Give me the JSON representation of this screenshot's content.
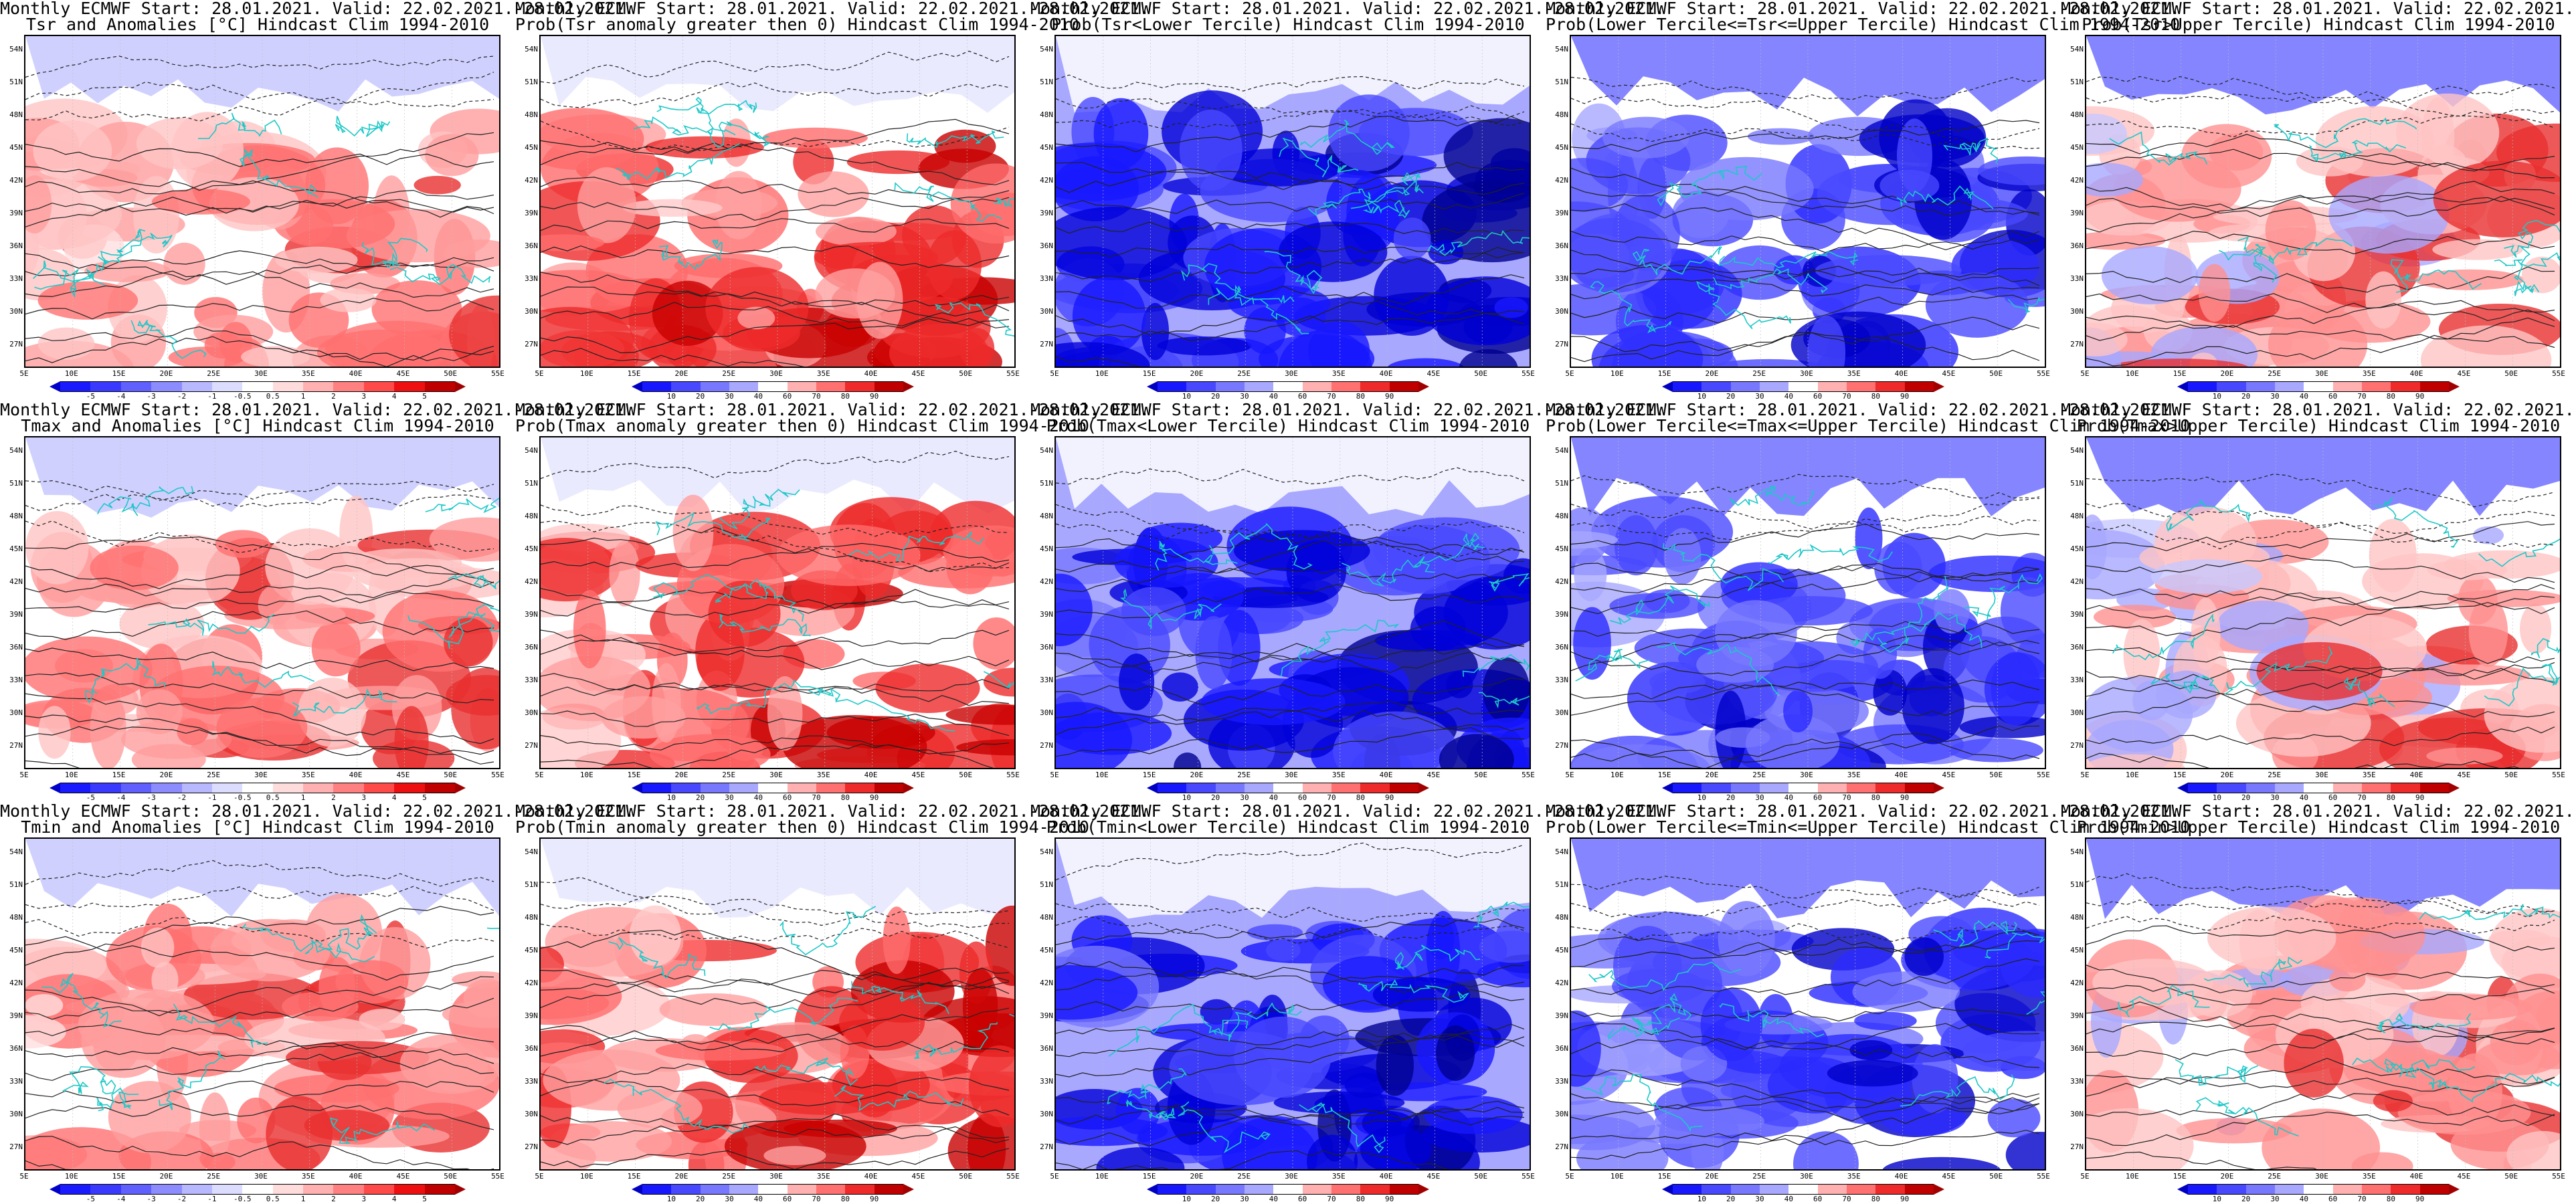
{
  "common": {
    "line1": "Monthly ECMWF Start: 28.01.2021. Valid: 22.02.2021.-28.02.2021.",
    "lat_labels": [
      "54N",
      "51N",
      "48N",
      "45N",
      "42N",
      "39N",
      "36N",
      "33N",
      "30N",
      "27N"
    ],
    "lon_labels": [
      "5E",
      "10E",
      "15E",
      "20E",
      "25E",
      "30E",
      "35E",
      "40E",
      "45E",
      "50E",
      "55E"
    ]
  },
  "colorbars": {
    "anomaly": {
      "labels": [
        "-5",
        "-4",
        "-3",
        "-2",
        "-1",
        "-0.5",
        "0.5",
        "1",
        "2",
        "3",
        "4",
        "5"
      ],
      "colors": [
        "#1a1aff",
        "#3a3aff",
        "#6060ff",
        "#8c8cff",
        "#b8b8ff",
        "#dcdcff",
        "#ffffff",
        "#ffdcdc",
        "#ffb0b0",
        "#ff8080",
        "#ff4a4a",
        "#ee1010",
        "#c00000"
      ],
      "left_end": "#0000c8",
      "right_end": "#a00000"
    },
    "prob": {
      "labels": [
        "10",
        "20",
        "30",
        "40",
        "60",
        "70",
        "80",
        "90"
      ],
      "colors": [
        "#1818ff",
        "#4848ff",
        "#7878ff",
        "#a8a8ff",
        "#ffffff",
        "#ffb0b0",
        "#ff7070",
        "#ee2a2a",
        "#c00000"
      ],
      "left_end": "#0000c0",
      "right_end": "#a00000"
    }
  },
  "panels": [
    {
      "line2": "Tsr and Anomalies [°C] Hindcast Clim 1994-2010",
      "bar": "anomaly",
      "theme": "warm_moderate"
    },
    {
      "line2": "Prob(Tsr anomaly greater then 0) Hindcast Clim 1994-2010",
      "bar": "prob",
      "theme": "warm_strong"
    },
    {
      "line2": "Prob(Tsr<Lower Tercile) Hindcast Clim 1994-2010",
      "bar": "prob",
      "theme": "blue_strong"
    },
    {
      "line2": "Prob(Lower Tercile<=Tsr<=Upper Tercile) Hindcast Clim 1994-2010",
      "bar": "prob",
      "theme": "blue_patchy"
    },
    {
      "line2": "Prob(Tsr>Upper Tercile) Hindcast Clim 1994-2010",
      "bar": "prob",
      "theme": "mixed_light"
    },
    {
      "line2": "Tmax and Anomalies [°C] Hindcast Clim 1994-2010",
      "bar": "anomaly",
      "theme": "warm_moderate"
    },
    {
      "line2": "Prob(Tmax anomaly greater then 0) Hindcast Clim 1994-2010",
      "bar": "prob",
      "theme": "warm_strong"
    },
    {
      "line2": "Prob(Tmax<Lower Tercile) Hindcast Clim 1994-2010",
      "bar": "prob",
      "theme": "blue_strong"
    },
    {
      "line2": "Prob(Lower Tercile<=Tmax<=Upper Tercile) Hindcast Clim 1994-2010",
      "bar": "prob",
      "theme": "blue_patchy"
    },
    {
      "line2": "Prob(Tmax>Upper Tercile) Hindcast Clim 1994-2010",
      "bar": "prob",
      "theme": "mixed_light"
    },
    {
      "line2": "Tmin and Anomalies [°C] Hindcast Clim 1994-2010",
      "bar": "anomaly",
      "theme": "warm_moderate"
    },
    {
      "line2": "Prob(Tmin anomaly greater then 0) Hindcast Clim 1994-2010",
      "bar": "prob",
      "theme": "warm_strong"
    },
    {
      "line2": "Prob(Tmin<Lower Tercile) Hindcast Clim 1994-2010",
      "bar": "prob",
      "theme": "blue_strong"
    },
    {
      "line2": "Prob(Lower Tercile<=Tmin<=Upper Tercile) Hindcast Clim 1994-2010",
      "bar": "prob",
      "theme": "blue_patchy"
    },
    {
      "line2": "Prob(Tmin>Upper Tercile) Hindcast Clim 1994-2010",
      "bar": "prob",
      "theme": "mixed_light"
    }
  ]
}
